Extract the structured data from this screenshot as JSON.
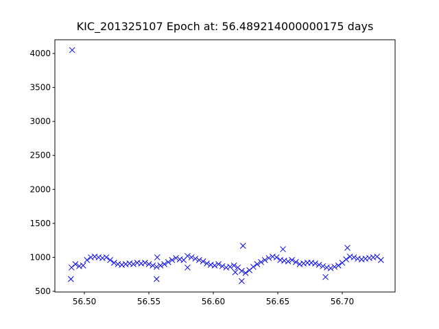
{
  "chart_data": {
    "type": "scatter",
    "title": "KIC_201325107 Epoch at: 56.489214000000175 days",
    "color": "#0000ff",
    "marker": "x",
    "x": [
      56.49,
      56.493,
      56.496,
      56.499,
      56.502,
      56.505,
      56.508,
      56.511,
      56.514,
      56.517,
      56.52,
      56.523,
      56.526,
      56.529,
      56.532,
      56.535,
      56.538,
      56.541,
      56.544,
      56.547,
      56.55,
      56.553,
      56.556,
      56.559,
      56.562,
      56.565,
      56.568,
      56.571,
      56.574,
      56.577,
      56.58,
      56.583,
      56.586,
      56.589,
      56.592,
      56.595,
      56.598,
      56.601,
      56.604,
      56.607,
      56.61,
      56.613,
      56.616,
      56.619,
      56.622,
      56.625,
      56.628,
      56.631,
      56.634,
      56.637,
      56.64,
      56.643,
      56.646,
      56.649,
      56.652,
      56.655,
      56.658,
      56.661,
      56.664,
      56.667,
      56.67,
      56.673,
      56.676,
      56.679,
      56.682,
      56.685,
      56.688,
      56.691,
      56.694,
      56.697,
      56.7,
      56.703,
      56.706,
      56.709,
      56.712,
      56.715,
      56.718,
      56.721,
      56.724,
      56.727,
      56.73,
      56.4905,
      56.4895,
      56.556,
      56.5565,
      56.623,
      56.622,
      56.654,
      56.687,
      56.704,
      56.58,
      56.617
    ],
    "values": [
      850,
      900,
      870,
      880,
      960,
      1000,
      1010,
      1000,
      990,
      1000,
      960,
      920,
      900,
      890,
      900,
      910,
      900,
      920,
      910,
      920,
      900,
      880,
      860,
      880,
      900,
      930,
      960,
      990,
      970,
      960,
      1020,
      1000,
      980,
      960,
      940,
      910,
      890,
      880,
      900,
      870,
      850,
      860,
      880,
      850,
      800,
      770,
      810,
      860,
      900,
      930,
      960,
      990,
      1010,
      1000,
      960,
      950,
      940,
      960,
      930,
      900,
      910,
      920,
      920,
      910,
      890,
      870,
      850,
      840,
      860,
      880,
      920,
      970,
      1010,
      1000,
      980,
      970,
      980,
      990,
      1000,
      1010,
      960,
      4050,
      680,
      680,
      1000,
      1170,
      650,
      1120,
      710,
      1140,
      850,
      780
    ],
    "xlim": [
      56.4771,
      56.741
    ],
    "xticks": [
      {
        "value": 56.5,
        "label": "56.50"
      },
      56.55,
      {
        "value": 56.6,
        "label": "56.60"
      },
      56.65,
      {
        "value": 56.7,
        "label": "56.70"
      }
    ],
    "ylim": [
      490,
      4202
    ],
    "yticks": [
      500,
      1000,
      1500,
      2000,
      2500,
      3000,
      3500,
      4000
    ]
  }
}
